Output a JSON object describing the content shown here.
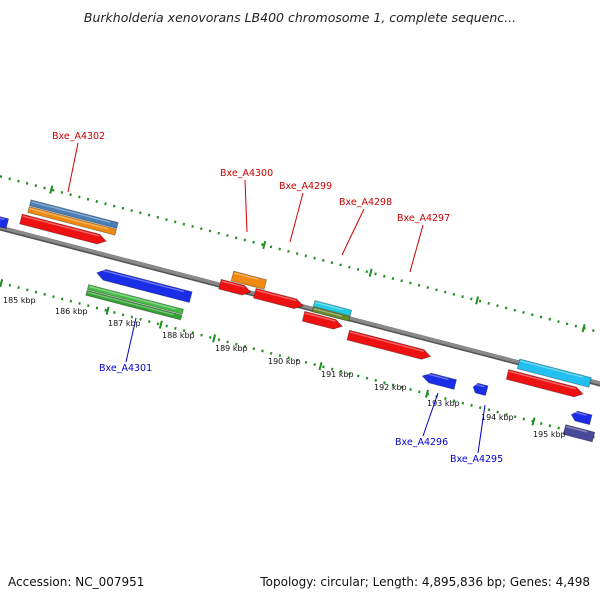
{
  "title": "Burkholderia xenovorans LB400 chromosome 1, complete sequenc...",
  "footer": {
    "accession": "Accession: NC_007951",
    "topology": "Topology: circular; Length: 4,895,836 bp; Genes: 4,498"
  },
  "colors": {
    "backbone": "#8a8a8a",
    "track_dots": "#1f8f1f",
    "label_forward": "#cc0000",
    "label_reverse": "#0000cc"
  },
  "scale": {
    "ticks": [
      "185 kbp",
      "186 kbp",
      "187 kbp",
      "188 kbp",
      "189 kbp",
      "190 kbp",
      "191 kbp",
      "192 kbp",
      "193 kbp",
      "194 kbp",
      "195 kbp"
    ]
  },
  "gene_labels": [
    {
      "name": "Bxe_A4302",
      "strand": "forward"
    },
    {
      "name": "Bxe_A4300",
      "strand": "forward"
    },
    {
      "name": "Bxe_A4299",
      "strand": "forward"
    },
    {
      "name": "Bxe_A4298",
      "strand": "forward"
    },
    {
      "name": "Bxe_A4297",
      "strand": "forward"
    },
    {
      "name": "Bxe_A4301",
      "strand": "reverse"
    },
    {
      "name": "Bxe_A4296",
      "strand": "reverse"
    },
    {
      "name": "Bxe_A4295",
      "strand": "reverse"
    }
  ]
}
